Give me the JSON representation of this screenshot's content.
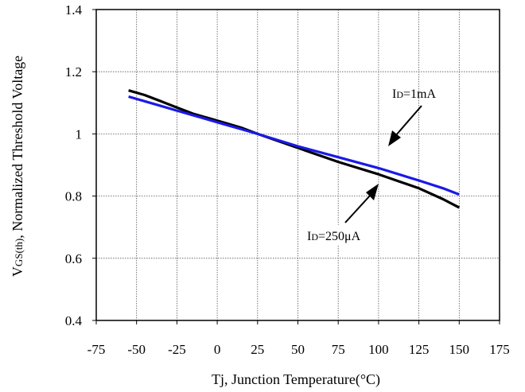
{
  "chart_data": {
    "type": "line",
    "title": "",
    "xlabel": "Tj, Junction Temperature(°C)",
    "ylabel_main": "V",
    "ylabel_sub": "GS(th)",
    "ylabel_rest": ", Normalized Threshold Voltage",
    "xlim": [
      -75,
      175
    ],
    "ylim": [
      0.4,
      1.4
    ],
    "x_ticks": [
      "-75",
      "-50",
      "-25",
      "0",
      "25",
      "50",
      "75",
      "100",
      "125",
      "150",
      "175"
    ],
    "y_ticks": [
      "0.4",
      "0.6",
      "0.8",
      "1",
      "1.2",
      "1.4"
    ],
    "grid": true,
    "series": [
      {
        "name": "ID=250μA",
        "color": "#000000",
        "x": [
          -55,
          -45,
          -35,
          -25,
          -15,
          -5,
          5,
          15,
          25,
          50,
          75,
          100,
          125,
          140,
          150
        ],
        "y": [
          1.14,
          1.125,
          1.105,
          1.085,
          1.065,
          1.05,
          1.035,
          1.02,
          1.0,
          0.955,
          0.91,
          0.87,
          0.825,
          0.79,
          0.763
        ]
      },
      {
        "name": "ID=1mA",
        "color": "#1a1ae6",
        "x": [
          -55,
          -45,
          -35,
          -25,
          -15,
          -5,
          5,
          15,
          25,
          50,
          75,
          100,
          125,
          140,
          150
        ],
        "y": [
          1.12,
          1.105,
          1.09,
          1.075,
          1.06,
          1.045,
          1.03,
          1.015,
          1.0,
          0.96,
          0.925,
          0.89,
          0.85,
          0.825,
          0.805
        ]
      }
    ],
    "annotations": [
      {
        "label_main": "I",
        "label_sub": "D",
        "label_rest": "=1mA",
        "target_series": "ID=1mA"
      },
      {
        "label_main": "I",
        "label_sub": "D",
        "label_rest": "=250μA",
        "target_series": "ID=250μA"
      }
    ]
  }
}
